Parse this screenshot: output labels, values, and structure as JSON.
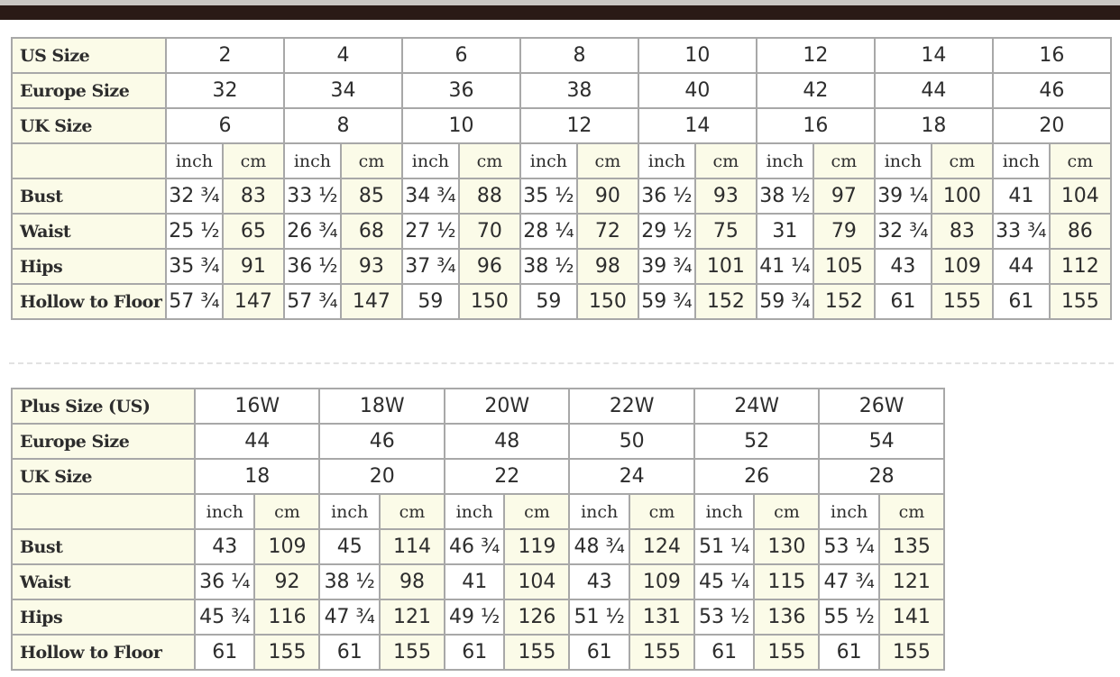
{
  "standard_chart": {
    "header_rows": [
      {
        "label": "US Size",
        "values": [
          "2",
          "4",
          "6",
          "8",
          "10",
          "12",
          "14",
          "16"
        ]
      },
      {
        "label": "Europe Size",
        "values": [
          "32",
          "34",
          "36",
          "38",
          "40",
          "42",
          "44",
          "46"
        ]
      },
      {
        "label": "UK Size",
        "values": [
          "6",
          "8",
          "10",
          "12",
          "14",
          "16",
          "18",
          "20"
        ]
      }
    ],
    "unit_labels": {
      "inch": "inch",
      "cm": "cm"
    },
    "measure_rows": [
      {
        "label": "Bust",
        "values": [
          "32 ¾",
          "83",
          "33 ½",
          "85",
          "34 ¾",
          "88",
          "35 ½",
          "90",
          "36 ½",
          "93",
          "38 ½",
          "97",
          "39 ¼",
          "100",
          "41",
          "104"
        ]
      },
      {
        "label": "Waist",
        "values": [
          "25 ½",
          "65",
          "26 ¾",
          "68",
          "27 ½",
          "70",
          "28 ¼",
          "72",
          "29 ½",
          "75",
          "31",
          "79",
          "32 ¾",
          "83",
          "33 ¾",
          "86"
        ]
      },
      {
        "label": "Hips",
        "values": [
          "35 ¾",
          "91",
          "36 ½",
          "93",
          "37 ¾",
          "96",
          "38 ½",
          "98",
          "39 ¾",
          "101",
          "41 ¼",
          "105",
          "43",
          "109",
          "44",
          "112"
        ]
      },
      {
        "label": "Hollow to Floor",
        "values": [
          "57 ¾",
          "147",
          "57 ¾",
          "147",
          "59",
          "150",
          "59",
          "150",
          "59 ¾",
          "152",
          "59 ¾",
          "152",
          "61",
          "155",
          "61",
          "155"
        ]
      }
    ]
  },
  "plus_chart": {
    "header_rows": [
      {
        "label": "Plus Size (US)",
        "values": [
          "16W",
          "18W",
          "20W",
          "22W",
          "24W",
          "26W"
        ]
      },
      {
        "label": "Europe Size",
        "values": [
          "44",
          "46",
          "48",
          "50",
          "52",
          "54"
        ]
      },
      {
        "label": "UK Size",
        "values": [
          "18",
          "20",
          "22",
          "24",
          "26",
          "28"
        ]
      }
    ],
    "unit_labels": {
      "inch": "inch",
      "cm": "cm"
    },
    "measure_rows": [
      {
        "label": "Bust",
        "values": [
          "43",
          "109",
          "45",
          "114",
          "46 ¾",
          "119",
          "48 ¾",
          "124",
          "51 ¼",
          "130",
          "53 ¼",
          "135"
        ]
      },
      {
        "label": "Waist",
        "values": [
          "36 ¼",
          "92",
          "38 ½",
          "98",
          "41",
          "104",
          "43",
          "109",
          "45 ¼",
          "115",
          "47 ¾",
          "121"
        ]
      },
      {
        "label": "Hips",
        "values": [
          "45 ¾",
          "116",
          "47 ¾",
          "121",
          "49 ½",
          "126",
          "51 ½",
          "131",
          "53 ½",
          "136",
          "55 ½",
          "141"
        ]
      },
      {
        "label": "Hollow to Floor",
        "values": [
          "61",
          "155",
          "61",
          "155",
          "61",
          "155",
          "61",
          "155",
          "61",
          "155",
          "61",
          "155"
        ]
      }
    ]
  }
}
